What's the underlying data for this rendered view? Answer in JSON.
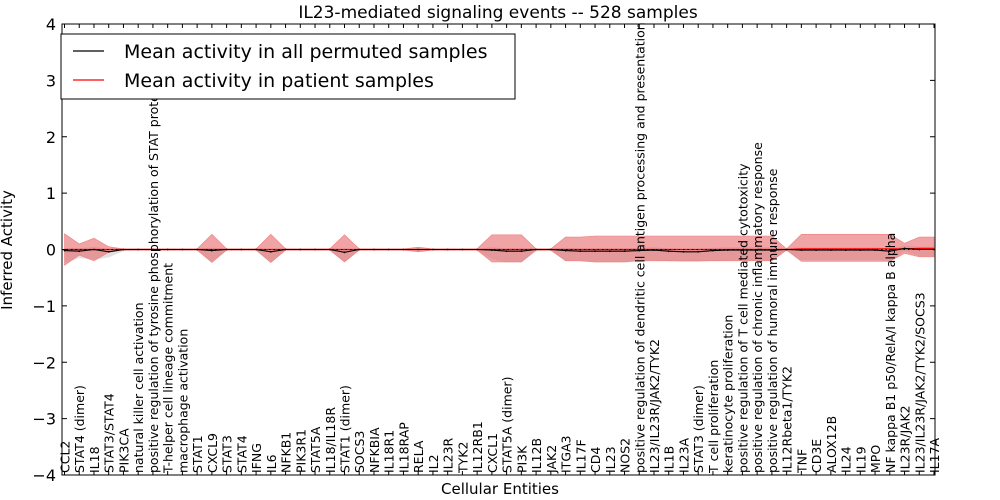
{
  "chart_data": {
    "type": "line",
    "title": "IL23-mediated signaling events -- 528 samples",
    "xlabel": "Cellular Entities",
    "ylabel": "Inferred Activity",
    "ylim": [
      -4,
      4
    ],
    "yticks": [
      4,
      3,
      2,
      1,
      0,
      -1,
      -2,
      -3,
      -4
    ],
    "ytick_labels": [
      "4",
      "3",
      "2",
      "1",
      "0",
      "−1",
      "−2",
      "−3",
      "−4"
    ],
    "grid": false,
    "legend": {
      "placement": "top-left",
      "entries": [
        {
          "label": "Mean activity in all permuted samples",
          "color": "#000000"
        },
        {
          "label": "Mean activity in patient samples",
          "color": "#ff0000"
        }
      ]
    },
    "categories": [
      "CCL2",
      "STAT4 (dimer)",
      "IL18",
      "STAT3/STAT4",
      "PIK3CA",
      "natural killer cell activation",
      "positive regulation of tyrosine phosphorylation of STAT protein",
      "T-helper cell lineage commitment",
      "macrophage activation",
      "STAT1",
      "CXCL9",
      "STAT3",
      "STAT4",
      "IFNG",
      "IL6",
      "NFKB1",
      "PIK3R1",
      "STAT5A",
      "IL18/IL18R",
      "STAT1 (dimer)",
      "SOCS3",
      "NFKBIA",
      "IL18R1",
      "IL18RAP",
      "RELA",
      "IL2",
      "IL23R",
      "TYK2",
      "IL12RB1",
      "CXCL1",
      "STAT5A (dimer)",
      "PI3K",
      "IL12B",
      "JAK2",
      "ITGA3",
      "IL17F",
      "CD4",
      "IL23",
      "NOS2",
      "positive regulation of dendritic cell antigen processing and presentation",
      "IL23/IL23R/JAK2/TYK2",
      "IL1B",
      "IL23A",
      "STAT3 (dimer)",
      "T cell proliferation",
      "keratinocyte proliferation",
      "positive regulation of T cell mediated cytotoxicity",
      "positive regulation of chronic inflammatory response",
      "positive regulation of humoral immune response",
      "IL12Rbeta1/TYK2",
      "TNF",
      "CD3E",
      "ALOX12B",
      "IL24",
      "IL19",
      "MPO",
      "NF kappa B1 p50/RelA/I kappa B alpha",
      "IL23R/JAK2",
      "IL23/IL23R/JAK2/TYK2/SOCS3",
      "IL17A"
    ],
    "series": [
      {
        "name": "Mean activity in all permuted samples",
        "color": "#000000",
        "values": [
          -0.02,
          -0.03,
          0.0,
          -0.04,
          0.0,
          0.0,
          0.0,
          0.0,
          0.0,
          0.0,
          -0.02,
          0.0,
          0.0,
          0.0,
          -0.04,
          0.0,
          0.0,
          0.0,
          0.0,
          -0.05,
          0.0,
          0.0,
          0.0,
          0.0,
          0.0,
          0.0,
          0.0,
          0.0,
          0.0,
          -0.01,
          -0.03,
          -0.03,
          0.0,
          0.0,
          -0.02,
          -0.03,
          -0.03,
          -0.03,
          -0.03,
          -0.02,
          -0.01,
          -0.03,
          -0.04,
          -0.04,
          -0.02,
          -0.01,
          -0.01,
          -0.01,
          -0.01,
          0.0,
          -0.01,
          -0.01,
          -0.01,
          -0.01,
          -0.01,
          -0.01,
          -0.03,
          0.02,
          0.0,
          0.0
        ],
        "lower": [
          -0.22,
          -0.12,
          -0.18,
          -0.1,
          -0.03,
          -0.02,
          -0.02,
          -0.02,
          -0.02,
          -0.02,
          -0.2,
          -0.02,
          -0.02,
          -0.02,
          -0.2,
          -0.02,
          -0.02,
          -0.02,
          -0.02,
          -0.18,
          -0.02,
          -0.02,
          -0.02,
          -0.02,
          -0.02,
          -0.02,
          -0.02,
          -0.02,
          -0.02,
          -0.16,
          -0.2,
          -0.2,
          -0.03,
          -0.03,
          -0.18,
          -0.18,
          -0.2,
          -0.2,
          -0.2,
          -0.18,
          -0.18,
          -0.18,
          -0.18,
          -0.18,
          -0.18,
          -0.18,
          -0.18,
          -0.18,
          -0.18,
          -0.02,
          -0.18,
          -0.18,
          -0.18,
          -0.18,
          -0.18,
          -0.18,
          -0.18,
          -0.05,
          -0.12,
          -0.12
        ],
        "upper": [
          0.05,
          0.05,
          0.05,
          0.05,
          0.02,
          0.02,
          0.02,
          0.02,
          0.02,
          0.02,
          0.05,
          0.02,
          0.02,
          0.02,
          0.05,
          0.02,
          0.02,
          0.02,
          0.02,
          0.05,
          0.02,
          0.02,
          0.02,
          0.02,
          0.02,
          0.02,
          0.02,
          0.02,
          0.02,
          0.05,
          0.05,
          0.05,
          0.02,
          0.02,
          0.05,
          0.05,
          0.05,
          0.05,
          0.05,
          0.05,
          0.05,
          0.05,
          0.05,
          0.05,
          0.05,
          0.05,
          0.05,
          0.05,
          0.05,
          0.02,
          0.05,
          0.05,
          0.05,
          0.05,
          0.05,
          0.05,
          0.05,
          0.05,
          0.05,
          0.05
        ]
      },
      {
        "name": "Mean activity in patient samples",
        "color": "#ff0000",
        "values": [
          0.0,
          0.0,
          0.0,
          0.0,
          0.0,
          0.0,
          0.0,
          0.0,
          0.0,
          0.0,
          0.0,
          0.0,
          0.0,
          0.0,
          0.0,
          0.0,
          0.0,
          0.0,
          0.0,
          0.0,
          0.0,
          0.0,
          0.0,
          0.0,
          0.0,
          0.0,
          0.0,
          0.0,
          0.0,
          0.0,
          0.0,
          0.0,
          0.0,
          0.0,
          0.0,
          0.0,
          0.0,
          0.0,
          0.0,
          0.0,
          0.0,
          0.0,
          0.0,
          0.0,
          0.0,
          0.0,
          0.0,
          0.0,
          0.0,
          0.0,
          0.01,
          0.01,
          0.01,
          0.01,
          0.01,
          0.01,
          0.01,
          0.01,
          0.02,
          0.02
        ],
        "lower": [
          -0.28,
          -0.1,
          -0.2,
          -0.05,
          -0.01,
          -0.01,
          -0.01,
          -0.01,
          -0.01,
          -0.01,
          -0.23,
          -0.01,
          -0.01,
          -0.01,
          -0.23,
          -0.01,
          -0.01,
          -0.01,
          -0.01,
          -0.22,
          -0.01,
          -0.01,
          -0.01,
          -0.01,
          -0.04,
          -0.01,
          -0.01,
          -0.01,
          -0.01,
          -0.22,
          -0.22,
          -0.22,
          -0.01,
          -0.01,
          -0.2,
          -0.2,
          -0.22,
          -0.22,
          -0.22,
          -0.2,
          -0.2,
          -0.2,
          -0.2,
          -0.2,
          -0.2,
          -0.2,
          -0.2,
          -0.2,
          -0.2,
          -0.01,
          -0.22,
          -0.22,
          -0.22,
          -0.22,
          -0.22,
          -0.22,
          -0.22,
          -0.08,
          -0.15,
          -0.15
        ],
        "upper": [
          0.28,
          0.1,
          0.2,
          0.05,
          0.01,
          0.01,
          0.01,
          0.01,
          0.01,
          0.01,
          0.27,
          0.01,
          0.01,
          0.01,
          0.27,
          0.01,
          0.01,
          0.01,
          0.01,
          0.26,
          0.01,
          0.01,
          0.01,
          0.01,
          0.04,
          0.01,
          0.01,
          0.01,
          0.01,
          0.26,
          0.26,
          0.26,
          0.01,
          0.01,
          0.22,
          0.22,
          0.24,
          0.24,
          0.24,
          0.24,
          0.24,
          0.24,
          0.24,
          0.24,
          0.24,
          0.24,
          0.24,
          0.24,
          0.24,
          0.01,
          0.26,
          0.26,
          0.26,
          0.26,
          0.26,
          0.26,
          0.26,
          0.1,
          0.2,
          0.2
        ]
      }
    ]
  }
}
